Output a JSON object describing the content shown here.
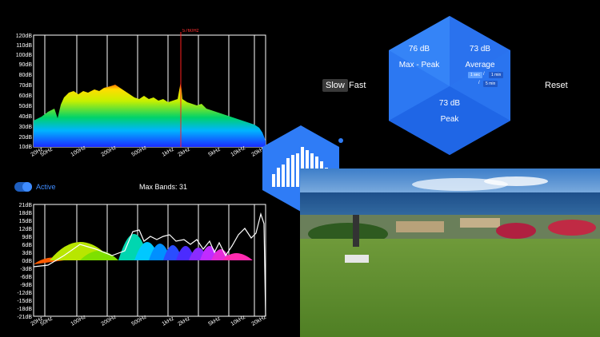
{
  "rta": {
    "marker_label": "5760Hz",
    "y_ticks": [
      "120dB",
      "110dB",
      "100dB",
      "90dB",
      "80dB",
      "70dB",
      "60dB",
      "50dB",
      "40dB",
      "30dB",
      "20dB",
      "10dB"
    ],
    "x_ticks": [
      "20Hz",
      "50Hz",
      "100Hz",
      "200Hz",
      "500Hz",
      "1kHz",
      "2kHz",
      "5kHz",
      "10kHz",
      "20kHz"
    ]
  },
  "eq": {
    "active_label": "Active",
    "max_bands_label": "Max Bands: 31",
    "y_ticks": [
      "21dB",
      "18dB",
      "15dB",
      "12dB",
      "9dB",
      "6dB",
      "3dB",
      "0dB",
      "-3dB",
      "-6dB",
      "-9dB",
      "-12dB",
      "-15dB",
      "-18dB",
      "-21dB"
    ],
    "x_ticks": [
      "20Hz",
      "50Hz",
      "100Hz",
      "200Hz",
      "500Hz",
      "1kHz",
      "2kHz",
      "5kHz",
      "10kHz",
      "20kHz"
    ]
  },
  "controls": {
    "slow_label": "Slow",
    "fast_label": "Fast",
    "reset_label": "Reset"
  },
  "meter": {
    "max_peak_value": "76 dB",
    "max_peak_label": "Max - Peak",
    "average_value": "73 dB",
    "average_label": "Average",
    "avg_opt_1sec": "1 sec",
    "avg_opt_1min": "1 min",
    "avg_opt_5min": "5 min",
    "avg_sep": "/",
    "peak_value": "73 dB",
    "peak_label": "Peak"
  },
  "colors": {
    "accent_blue": "#2f7cf6",
    "hex_dark": "#1d5fe0",
    "hex_bottom": "#2a6ff0"
  }
}
